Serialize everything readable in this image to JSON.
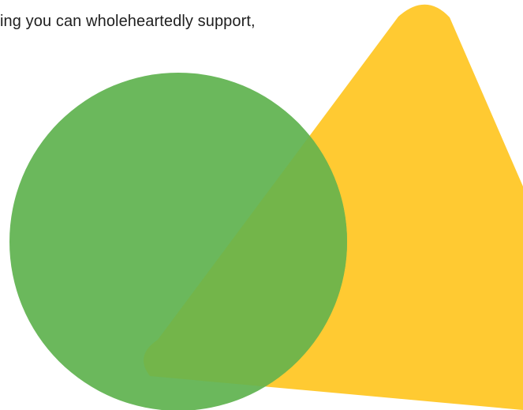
{
  "text": {
    "snippet": "ing you can wholeheartedly support,"
  },
  "colors": {
    "background": "#ffffff",
    "text": "#1f1f1f",
    "triangle": "#ffca32",
    "circle": "#6bb85c",
    "overlap": "#73b54a"
  },
  "shapes": {
    "triangle": "yellow-triangle",
    "circle": "green-circle"
  }
}
